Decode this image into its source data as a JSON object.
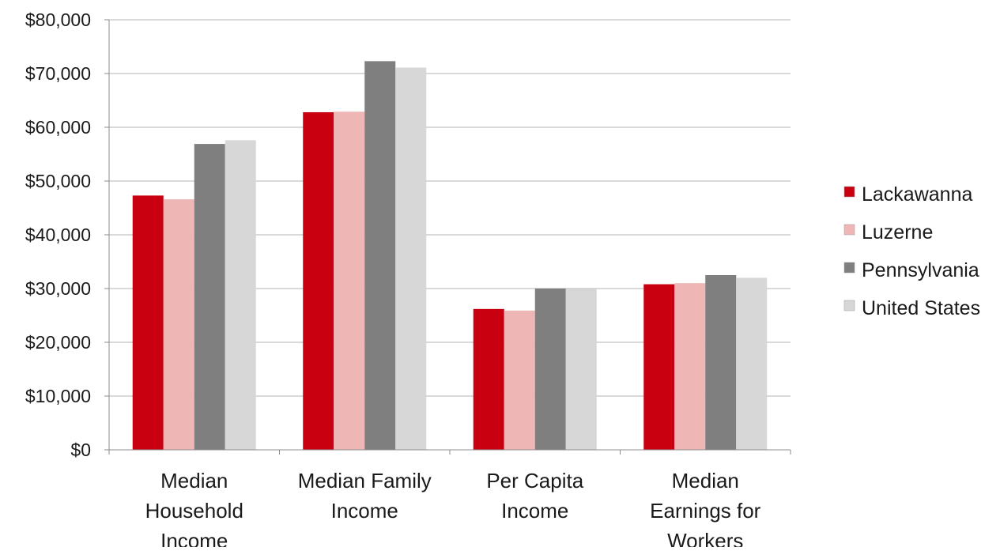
{
  "chart_data": {
    "type": "bar",
    "categories": [
      [
        "Median",
        "Household",
        "Income"
      ],
      [
        "Median Family",
        "Income"
      ],
      [
        "Per Capita",
        "Income"
      ],
      [
        "Median",
        "Earnings for",
        "Workers"
      ]
    ],
    "series": [
      {
        "name": "Lackawanna",
        "color": "#c8000f",
        "values": [
          47300,
          62800,
          26200,
          30800
        ]
      },
      {
        "name": "Luzerne",
        "color": "#efb6b6",
        "values": [
          46600,
          62900,
          25900,
          31000
        ]
      },
      {
        "name": "Pennsylvania",
        "color": "#7f7f7f",
        "values": [
          56900,
          72300,
          30000,
          32500
        ]
      },
      {
        "name": "United States",
        "color": "#d7d7d7",
        "values": [
          57600,
          71100,
          29900,
          32000
        ]
      }
    ],
    "y_ticks": [
      "$0",
      "$10,000",
      "$20,000",
      "$30,000",
      "$40,000",
      "$50,000",
      "$60,000",
      "$70,000",
      "$80,000"
    ],
    "ylim": [
      0,
      80000
    ],
    "grid": true,
    "legend_position": "right"
  }
}
